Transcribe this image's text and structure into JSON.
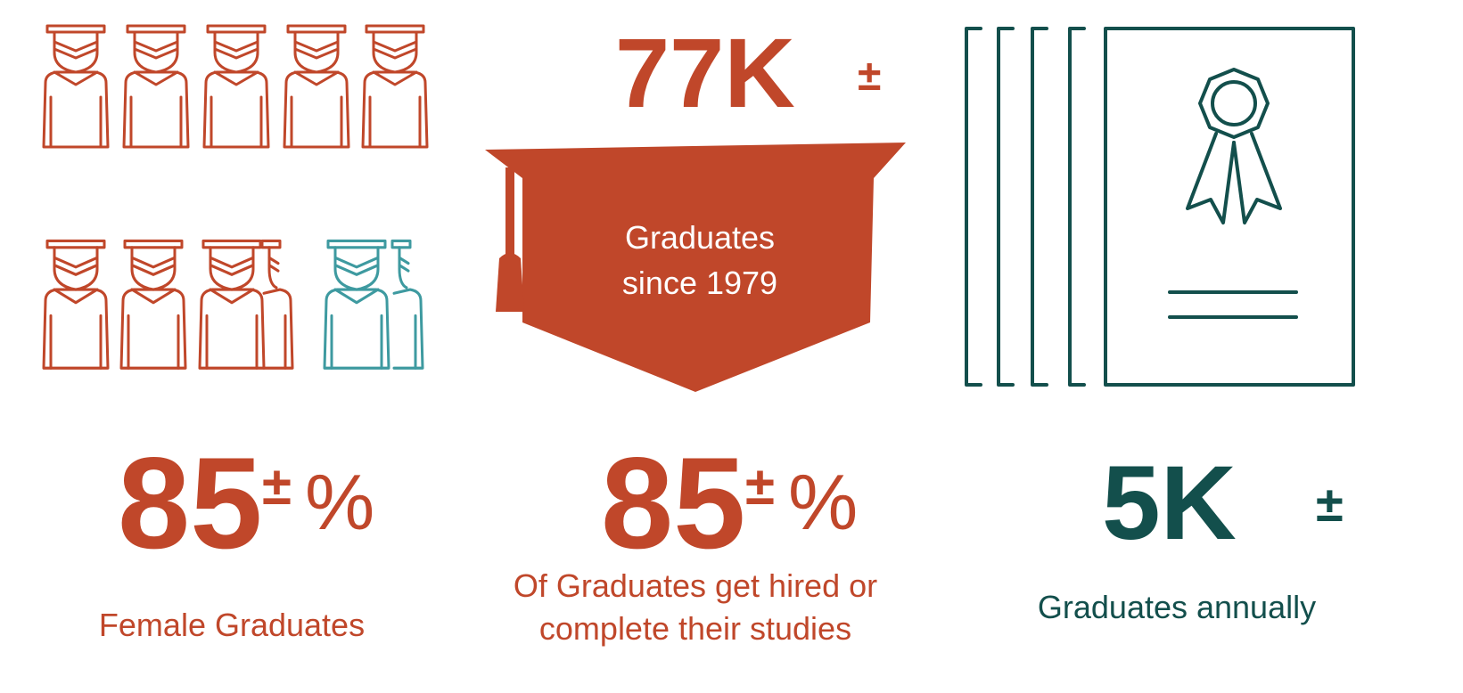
{
  "colors": {
    "primary": "#C0472A",
    "secondary": "#3E9AA0",
    "dark": "#134F4C",
    "background": "#FFFFFF"
  },
  "icons": {
    "graduates_grid": "graduate-figure-icon",
    "center": "graduation-cap-icon",
    "right": "certificate-stack-icon"
  },
  "graduates_icon": {
    "figures_total": 10,
    "female_share": 0.85
  },
  "center": {
    "value": "77K",
    "symbol": "±",
    "cap_line1": "Graduates",
    "cap_line2": "since 1979",
    "percent_value": "85",
    "percent_symbol": "±",
    "percent_sign": "%",
    "caption_line1": "Of Graduates get hired or",
    "caption_line2": "complete their studies"
  },
  "left": {
    "percent_value": "85",
    "percent_symbol": "±",
    "percent_sign": "%",
    "caption": "Female Graduates"
  },
  "right": {
    "value": "5K",
    "symbol": "±",
    "caption": "Graduates annually"
  }
}
